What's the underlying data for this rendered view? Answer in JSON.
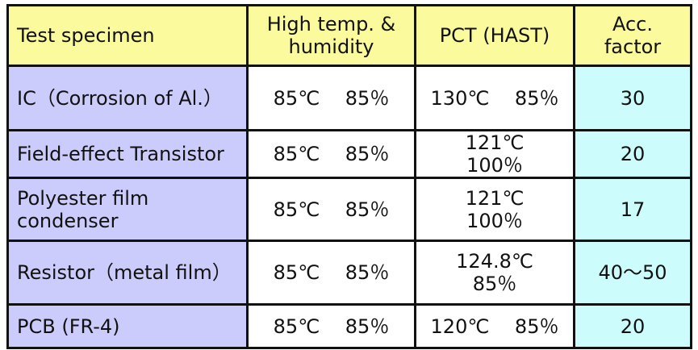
{
  "colors": {
    "header": "#fbfb9e",
    "specimen_column": "#ccccfc",
    "acc_column": "#ccfcfc"
  },
  "headers": [
    "Test specimen",
    "High temp. & humidity",
    "PCT (HAST)",
    "Acc. factor"
  ],
  "rows": [
    {
      "specimen": "IC（Corrosion of Al.）",
      "high_temp_humidity": "85℃　 85％",
      "pct": "130℃　 85％",
      "acc": "30"
    },
    {
      "specimen": "Field-effect Transistor",
      "high_temp_humidity": "85℃　 85％",
      "pct": "121℃　 100％",
      "acc": "20"
    },
    {
      "specimen": "Polyester film condenser",
      "high_temp_humidity": "85℃　 85％",
      "pct": "121℃　 100％",
      "acc": "17"
    },
    {
      "specimen": "Resistor（metal film）",
      "high_temp_humidity": "85℃　 85％",
      "pct": "124.8℃　 85％",
      "acc": "40～50"
    },
    {
      "specimen": "PCB (FR-4)",
      "high_temp_humidity": "85℃　 85％",
      "pct": "120℃　 85％",
      "acc": "20"
    }
  ]
}
